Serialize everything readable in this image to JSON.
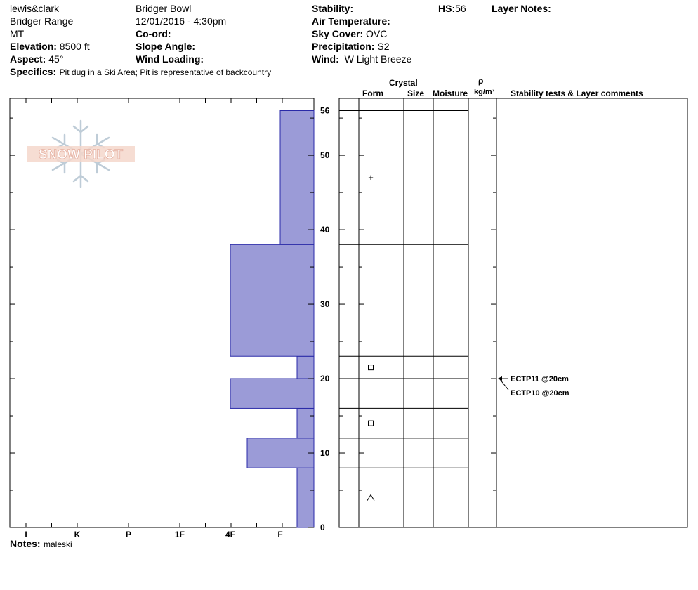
{
  "header": {
    "observer": "lewis&clark",
    "range": "Bridger Range",
    "state": "MT",
    "elevation_label": "Elevation:",
    "elevation_value": "8500 ft",
    "aspect_label": "Aspect:",
    "aspect_value": "45°",
    "location": "Bridger Bowl",
    "datetime": "12/01/2016 - 4:30pm",
    "coord_label": "Co-ord:",
    "slope_label": "Slope Angle:",
    "wind_loading_label": "Wind Loading:",
    "stability_label": "Stability:",
    "air_temp_label": "Air Temperature:",
    "sky_label": "Sky Cover:",
    "sky_value": "OVC",
    "precip_label": "Precipitation:",
    "precip_value": "S2",
    "wind_label": "Wind:",
    "wind_value": "W Light Breeze",
    "hs_label": "HS:",
    "hs_value": "56",
    "layer_notes_label": "Layer Notes:",
    "specifics_label": "Specifics:",
    "specifics_value": "Pit dug in a Ski Area; Pit is representative of backcountry"
  },
  "logo_text": "SNOW PILOT",
  "table_headers": {
    "crystal": "Crystal",
    "form": "Form",
    "size": "Size",
    "moisture": "Moisture",
    "rho": "ρ",
    "density_unit": "kg/m³",
    "comments": "Stability tests & Layer comments"
  },
  "notes_label": "Notes:",
  "notes_value": "maleski",
  "colors": {
    "hardness_fill": "#9b9bd7",
    "hardness_stroke": "#2a2aa8"
  },
  "chart_data": {
    "type": "bar",
    "y_label": "",
    "ylim": [
      0,
      56
    ],
    "y_ticks": [
      0,
      10,
      20,
      30,
      40,
      50,
      56
    ],
    "hardness_scale": [
      "I",
      "K",
      "P",
      "1F",
      "4F",
      "F"
    ],
    "layers": [
      {
        "bottom": 0,
        "top": 8,
        "hardness": "F-",
        "form": ""
      },
      {
        "bottom": 8,
        "top": 12,
        "hardness": "4F-",
        "form": ""
      },
      {
        "bottom": 12,
        "top": 16,
        "hardness": "F-",
        "form": ""
      },
      {
        "bottom": 16,
        "top": 20,
        "hardness": "4F",
        "form": ""
      },
      {
        "bottom": 20,
        "top": 23,
        "hardness": "F-",
        "form": ""
      },
      {
        "bottom": 23,
        "top": 38,
        "hardness": "4F",
        "form": ""
      },
      {
        "bottom": 38,
        "top": 56,
        "hardness": "F",
        "form": ""
      }
    ],
    "layer_boundaries": [
      56,
      38,
      23,
      20,
      16,
      12,
      8
    ],
    "form_symbols": [
      {
        "depth": 47,
        "symbol": "+"
      },
      {
        "depth": 21.5,
        "symbol": "□"
      },
      {
        "depth": 14,
        "symbol": "□"
      },
      {
        "depth": 4,
        "symbol": "^"
      }
    ],
    "stability_tests": [
      {
        "depth": 20,
        "label": "ECTP11 @20cm"
      },
      {
        "depth": 20,
        "label": "ECTP10 @20cm"
      }
    ]
  }
}
